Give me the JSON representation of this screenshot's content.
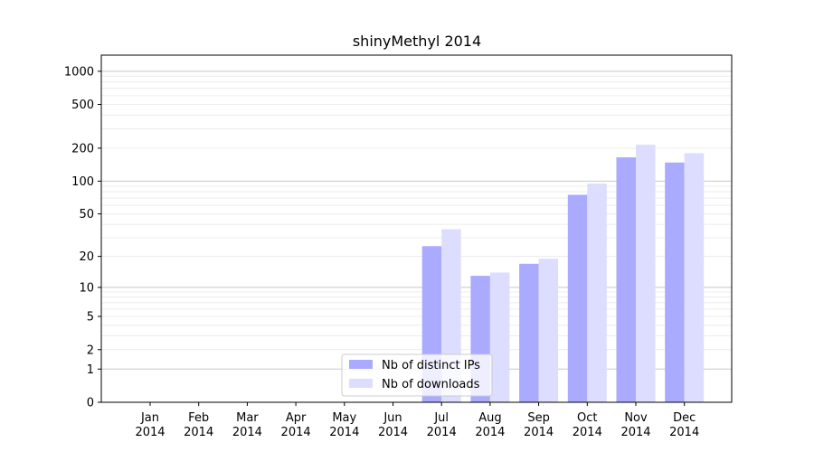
{
  "chart_data": {
    "type": "bar",
    "title": "shinyMethyl 2014",
    "xlabel": "",
    "ylabel": "",
    "yscale": "log(1+y)",
    "ylim": [
      0,
      1400
    ],
    "categories": [
      [
        "Jan",
        "2014"
      ],
      [
        "Feb",
        "2014"
      ],
      [
        "Mar",
        "2014"
      ],
      [
        "Apr",
        "2014"
      ],
      [
        "May",
        "2014"
      ],
      [
        "Jun",
        "2014"
      ],
      [
        "Jul",
        "2014"
      ],
      [
        "Aug",
        "2014"
      ],
      [
        "Sep",
        "2014"
      ],
      [
        "Oct",
        "2014"
      ],
      [
        "Nov",
        "2014"
      ],
      [
        "Dec",
        "2014"
      ]
    ],
    "y_ticks": [
      0,
      1,
      2,
      5,
      10,
      20,
      50,
      100,
      200,
      500,
      1000
    ],
    "y_tick_labels": [
      "0",
      "1",
      "2",
      "5",
      "10",
      "20",
      "50",
      "100",
      "200",
      "500",
      "1000"
    ],
    "major_grid": [
      1,
      10,
      100,
      1000
    ],
    "grid": true,
    "legend_position": "lower-center",
    "series": [
      {
        "name": "Nb of distinct IPs",
        "color": "#aaaaff",
        "values": [
          0,
          0,
          0,
          0,
          0,
          0,
          25,
          13,
          17,
          75,
          165,
          148
        ]
      },
      {
        "name": "Nb of downloads",
        "color": "#ddddff",
        "values": [
          0,
          0,
          0,
          0,
          0,
          0,
          36,
          14,
          19,
          95,
          215,
          180
        ]
      }
    ]
  }
}
